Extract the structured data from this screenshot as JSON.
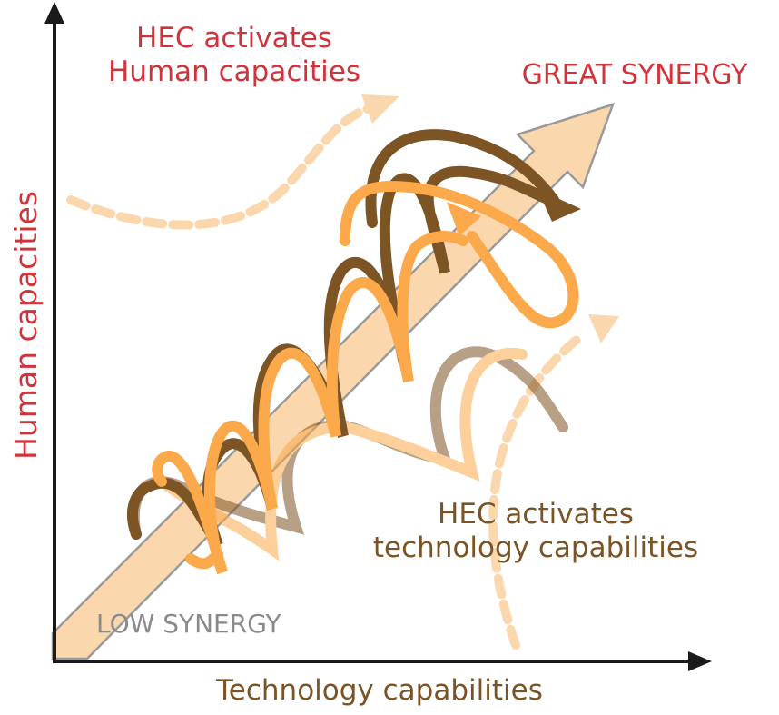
{
  "labels": {
    "y_axis": "Human capacities",
    "x_axis": "Technology capabilities",
    "top_left_line1": "HEC activates",
    "top_left_line2": "Human capacities",
    "bottom_right_line1": "HEC activates",
    "bottom_right_line2": "technology capabilities",
    "great_synergy": "GREAT SYNERGY",
    "low_synergy": "LOW SYNERGY"
  },
  "colors": {
    "red": "#d0343b",
    "brown_text": "#7a5425",
    "dark_brown": "#7d5424",
    "orange": "#fba94a",
    "peach": "#fbd7ad",
    "gray": "#8a8a8a",
    "axis": "#1a1a1a"
  }
}
